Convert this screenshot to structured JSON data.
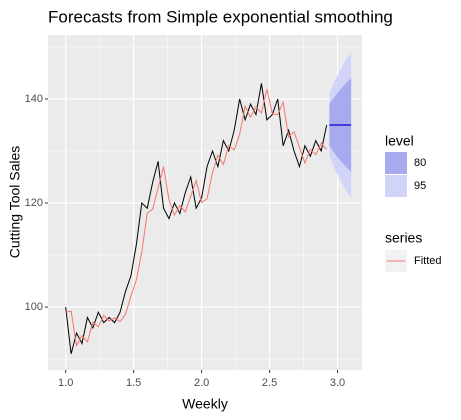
{
  "chart_data": {
    "type": "line",
    "title": "Forecasts from Simple exponential smoothing",
    "x_label": "Weekly",
    "y_label": "Cutting Tool Sales",
    "xlim": [
      0.87,
      3.18
    ],
    "ylim": [
      87.9,
      152.3
    ],
    "xticks": [
      {
        "value": 1.0,
        "label": "1.0"
      },
      {
        "value": 1.5,
        "label": "1.5"
      },
      {
        "value": 2.0,
        "label": "2.0"
      },
      {
        "value": 2.5,
        "label": "2.5"
      },
      {
        "value": 3.0,
        "label": "3.0"
      }
    ],
    "yticks": [
      100,
      120,
      140
    ],
    "x_minor_ticks": [
      1.25,
      1.75,
      2.25,
      2.75
    ],
    "y_minor_ticks": [
      90,
      110,
      130,
      150
    ],
    "grid": true,
    "series": [
      {
        "color": "#000000",
        "x": [
          1.0,
          1.04,
          1.08,
          1.12,
          1.16,
          1.2,
          1.24,
          1.28,
          1.32,
          1.36,
          1.4,
          1.44,
          1.48,
          1.52,
          1.56,
          1.6,
          1.64,
          1.68,
          1.72,
          1.76,
          1.8,
          1.84,
          1.88,
          1.92,
          1.96,
          2.0,
          2.04,
          2.08,
          2.12,
          2.16,
          2.2,
          2.24,
          2.28,
          2.32,
          2.36,
          2.4,
          2.44,
          2.48,
          2.52,
          2.56,
          2.6,
          2.64,
          2.68,
          2.72,
          2.76,
          2.8,
          2.84,
          2.88,
          2.92
        ],
        "values": [
          100,
          91,
          95,
          93,
          98,
          96,
          99,
          97,
          98,
          97,
          99,
          103,
          106,
          112,
          120,
          119,
          124,
          128,
          119,
          117,
          120,
          118,
          122,
          125,
          119,
          121,
          127,
          130,
          127,
          132,
          130,
          134,
          140,
          136,
          139,
          137,
          143,
          136,
          137,
          140,
          131,
          134,
          130,
          127,
          131,
          129,
          132,
          130,
          135
        ]
      },
      {
        "name": "Fitted",
        "color": "#f8766d",
        "x": [
          1.0,
          1.04,
          1.08,
          1.12,
          1.16,
          1.2,
          1.24,
          1.28,
          1.32,
          1.36,
          1.4,
          1.44,
          1.48,
          1.52,
          1.56,
          1.6,
          1.64,
          1.68,
          1.72,
          1.76,
          1.8,
          1.84,
          1.88,
          1.92,
          1.96,
          2.0,
          2.04,
          2.08,
          2.12,
          2.16,
          2.2,
          2.24,
          2.28,
          2.32,
          2.36,
          2.4,
          2.44,
          2.48,
          2.52,
          2.56,
          2.6,
          2.64,
          2.68,
          2.72,
          2.76,
          2.8,
          2.84,
          2.88,
          2.92
        ],
        "values": [
          99,
          99.2,
          92.6,
          94.5,
          93.3,
          97.1,
          96.2,
          98.4,
          97.3,
          97.9,
          97.2,
          98.6,
          102.1,
          105.2,
          110.6,
          118.1,
          118.8,
          122.9,
          127.0,
          120.6,
          117.7,
          119.5,
          118.3,
          121.3,
          124.3,
          120.1,
          120.8,
          125.8,
          129.2,
          127.4,
          131.1,
          130.2,
          133.2,
          138.6,
          136.5,
          138.5,
          137.3,
          141.9,
          137.2,
          137.0,
          139.4,
          132.7,
          133.7,
          130.7,
          127.7,
          130.3,
          129.3,
          131.5,
          130.3
        ]
      }
    ],
    "forecast": {
      "x": [
        2.94,
        2.98,
        3.02,
        3.06,
        3.1
      ],
      "mean": [
        135,
        135,
        135,
        135,
        135
      ],
      "color": "#0000cc",
      "levels": [
        {
          "name": "95",
          "color": "#d1d3f8",
          "lower": [
            129,
            126.5,
            124.5,
            122.5,
            121
          ],
          "upper": [
            141,
            143.5,
            145.5,
            147.5,
            149
          ]
        },
        {
          "name": "80",
          "color": "#a7aaef",
          "lower": [
            131,
            129.5,
            128.2,
            127,
            126
          ],
          "upper": [
            139,
            140.5,
            141.8,
            143,
            144
          ]
        }
      ]
    },
    "legend_level_title": "level",
    "legend_series_title": "series"
  }
}
